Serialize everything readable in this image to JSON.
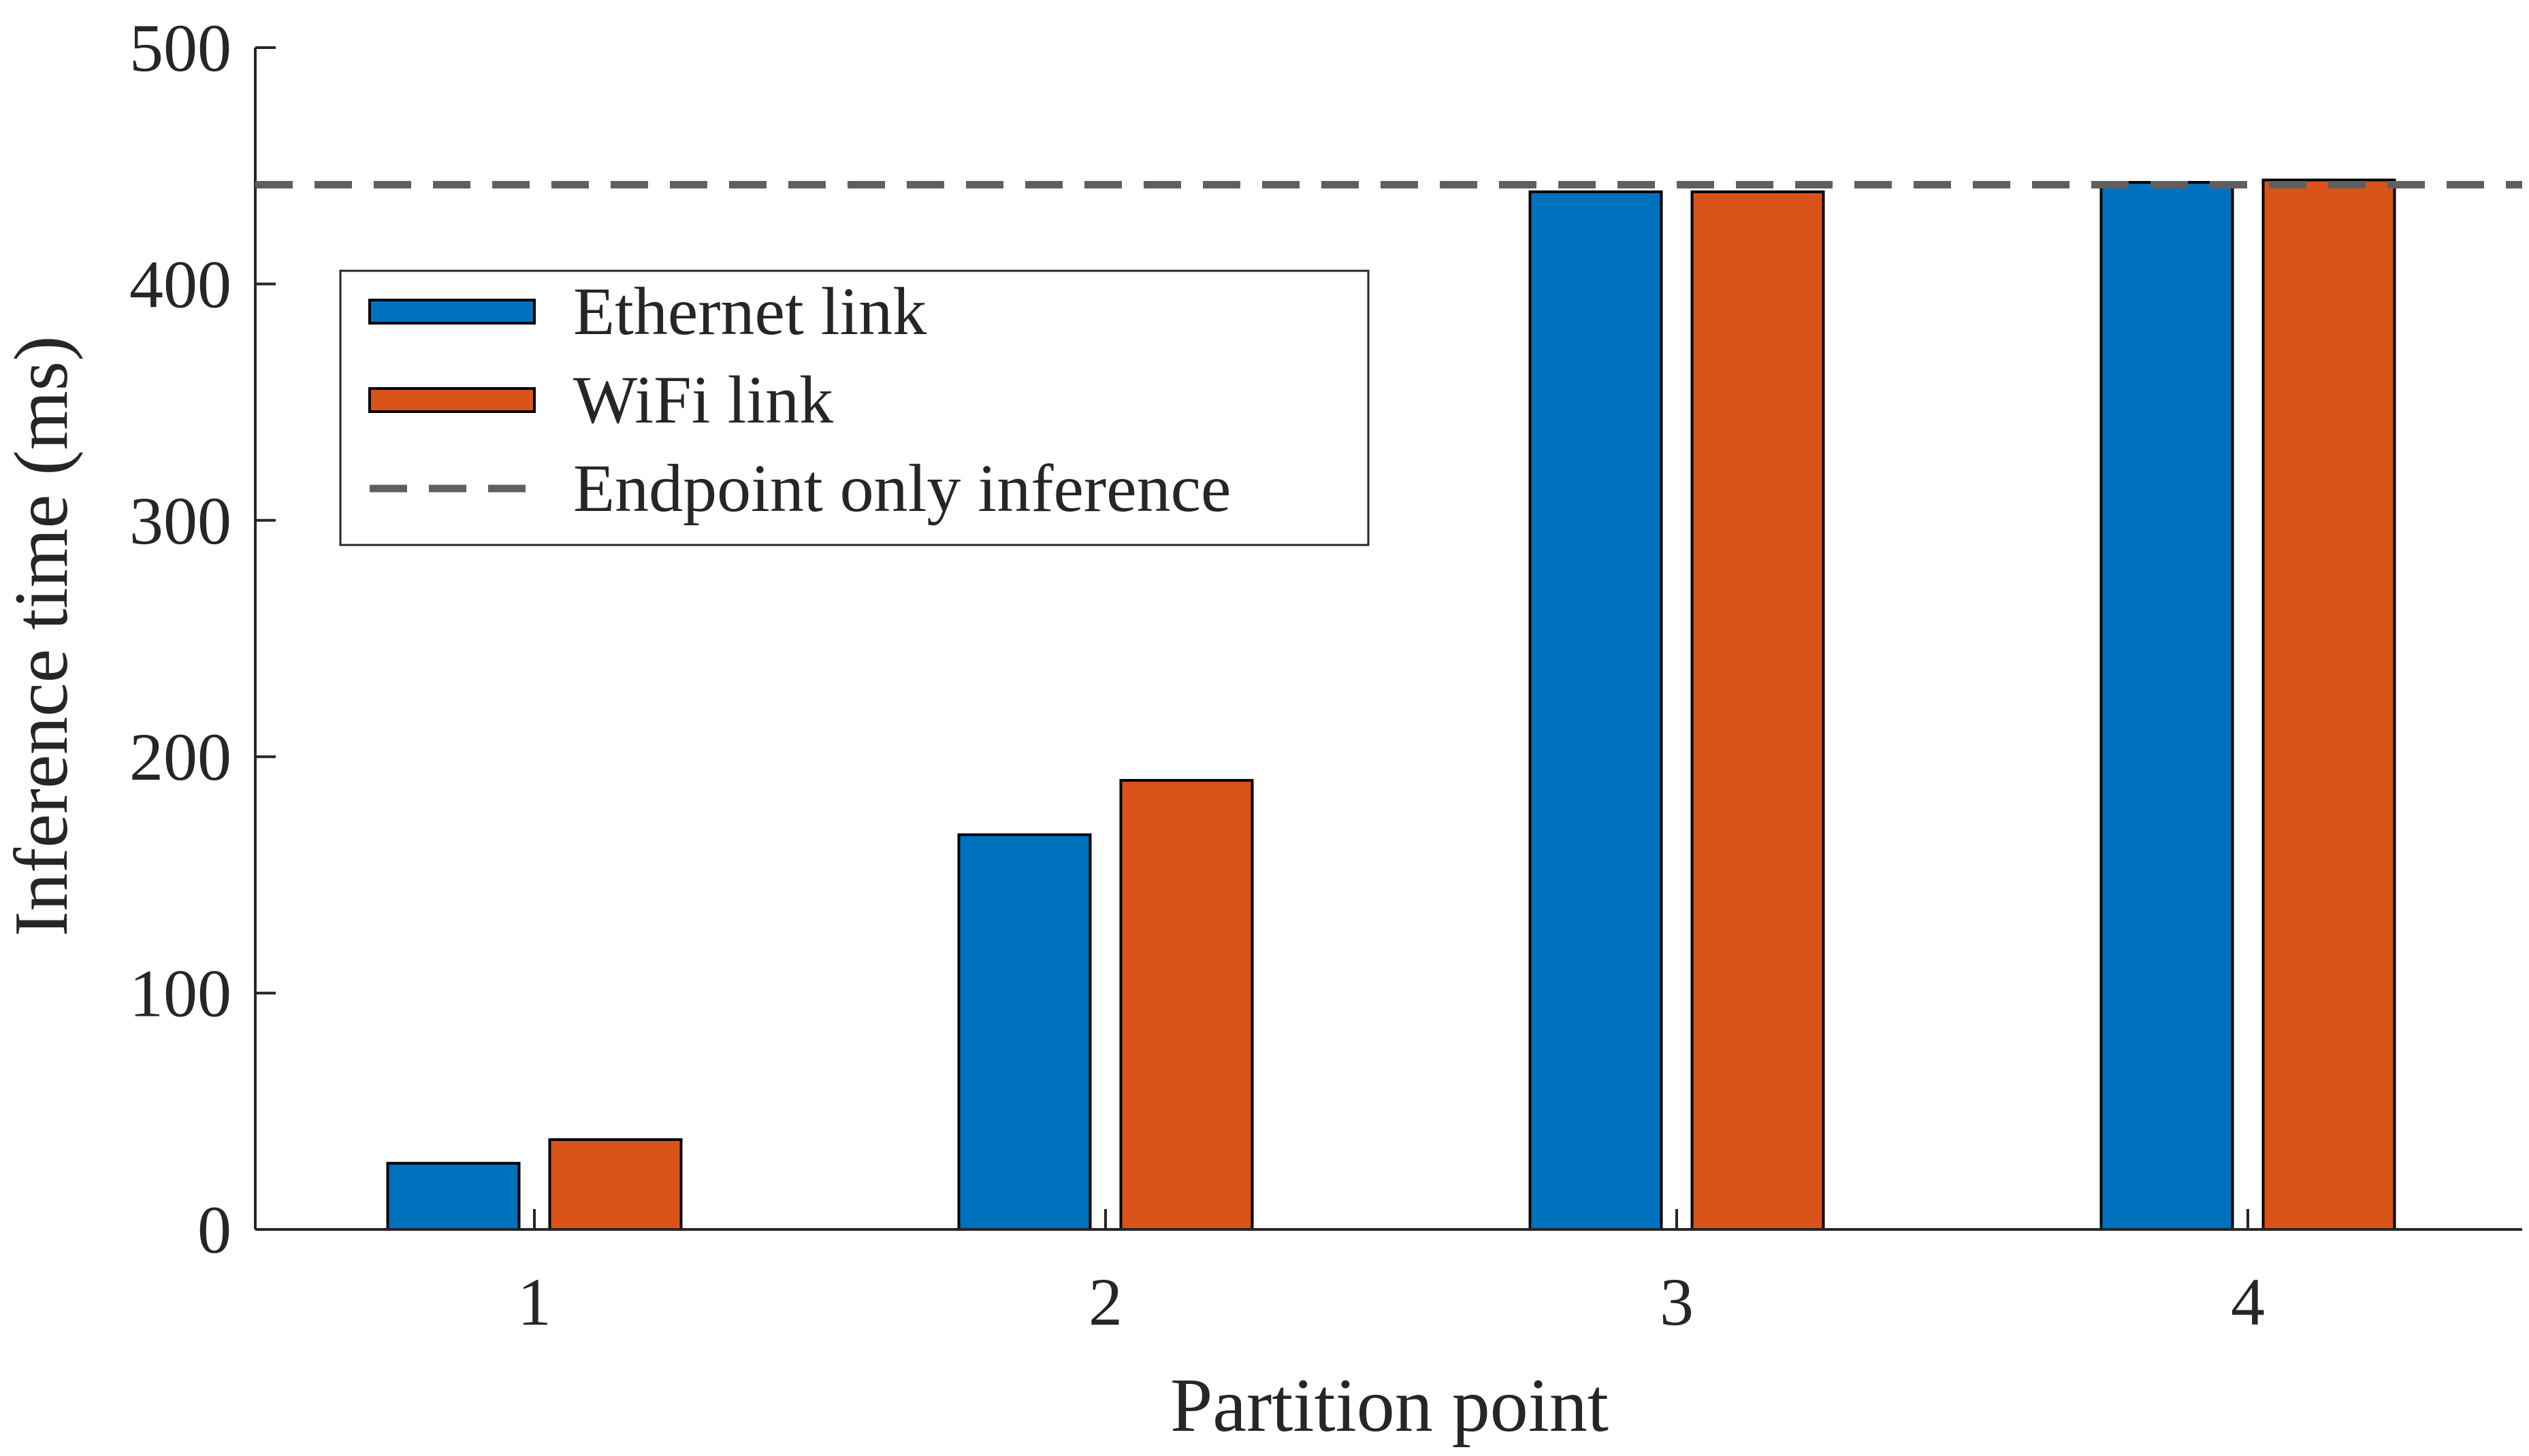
{
  "chart_data": {
    "type": "bar",
    "categories": [
      "1",
      "2",
      "3",
      "4"
    ],
    "series": [
      {
        "name": "Ethernet link",
        "color": "#0072BD",
        "values": [
          28,
          167,
          439,
          443
        ]
      },
      {
        "name": "WiFi link",
        "color": "#D95319",
        "values": [
          38,
          190,
          439,
          444
        ]
      }
    ],
    "reference_line": {
      "name": "Endpoint only inference",
      "value": 442,
      "style": "dashed",
      "color": "#5f5f5f"
    },
    "xlabel": "Partition point",
    "ylabel": "Inference time (ms)",
    "ylim": [
      0,
      500
    ],
    "yticks": [
      "0",
      "100",
      "200",
      "300",
      "400",
      "500"
    ],
    "grid": false,
    "legend_position": "upper-left"
  }
}
